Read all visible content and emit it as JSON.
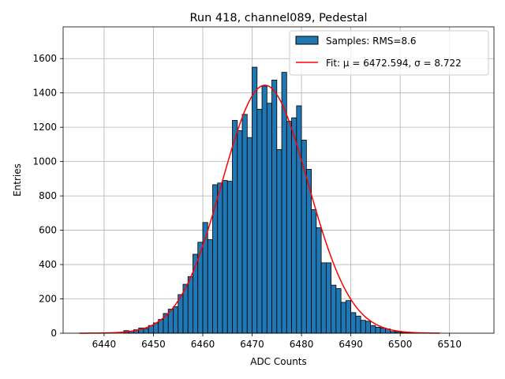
{
  "chart_data": {
    "type": "bar",
    "title": "Run 418, channel089, Pedestal",
    "xlabel": "ADC Counts",
    "ylabel": "Entries",
    "xlim": [
      6431.7,
      6519.0
    ],
    "ylim": [
      0,
      1785
    ],
    "xticks": [
      6440,
      6450,
      6460,
      6470,
      6480,
      6490,
      6500,
      6510
    ],
    "yticks": [
      0,
      200,
      400,
      600,
      800,
      1000,
      1200,
      1400,
      1600
    ],
    "grid": true,
    "legend_position": "top-right",
    "colors": {
      "bars": "#1f77b4",
      "bar_edge": "#000000",
      "fit": "#ff0000",
      "grid": "#b0b0b0"
    },
    "histogram": {
      "bin_width": 1,
      "bin_starts": [
        6435,
        6436,
        6437,
        6438,
        6439,
        6440,
        6441,
        6442,
        6443,
        6444,
        6445,
        6446,
        6447,
        6448,
        6449,
        6450,
        6451,
        6452,
        6453,
        6454,
        6455,
        6456,
        6457,
        6458,
        6459,
        6460,
        6461,
        6462,
        6463,
        6464,
        6465,
        6466,
        6467,
        6468,
        6469,
        6470,
        6471,
        6472,
        6473,
        6474,
        6475,
        6476,
        6477,
        6478,
        6479,
        6480,
        6481,
        6482,
        6483,
        6484,
        6485,
        6486,
        6487,
        6488,
        6489,
        6490,
        6491,
        6492,
        6493,
        6494,
        6495,
        6496,
        6497,
        6498,
        6499,
        6500,
        6501,
        6502,
        6503,
        6504,
        6505,
        6506,
        6507,
        6508,
        6509,
        6510,
        6511,
        6512,
        6513,
        6514,
        6515
      ],
      "counts": [
        0,
        0,
        0,
        0,
        0,
        0,
        0,
        0,
        0,
        15,
        12,
        20,
        30,
        28,
        45,
        60,
        80,
        115,
        140,
        155,
        225,
        285,
        330,
        460,
        530,
        645,
        545,
        865,
        875,
        890,
        885,
        1240,
        1180,
        1275,
        1140,
        1550,
        1305,
        1440,
        1340,
        1475,
        1070,
        1520,
        1235,
        1255,
        1325,
        1125,
        955,
        720,
        615,
        410,
        410,
        280,
        260,
        180,
        190,
        120,
        100,
        75,
        70,
        45,
        35,
        30,
        25,
        10,
        8,
        5,
        3,
        2,
        1,
        0,
        0,
        0,
        0,
        0,
        0,
        0,
        0,
        0,
        0,
        0,
        0
      ]
    },
    "series": [
      {
        "name": "Samples: RMS=8.6",
        "type": "histogram"
      },
      {
        "name": "Fit: μ = 6472.594, σ = 8.722",
        "type": "line",
        "mu": 6472.594,
        "sigma": 8.722,
        "amplitude": 1445,
        "x_range": [
          6435,
          6508
        ]
      }
    ]
  }
}
